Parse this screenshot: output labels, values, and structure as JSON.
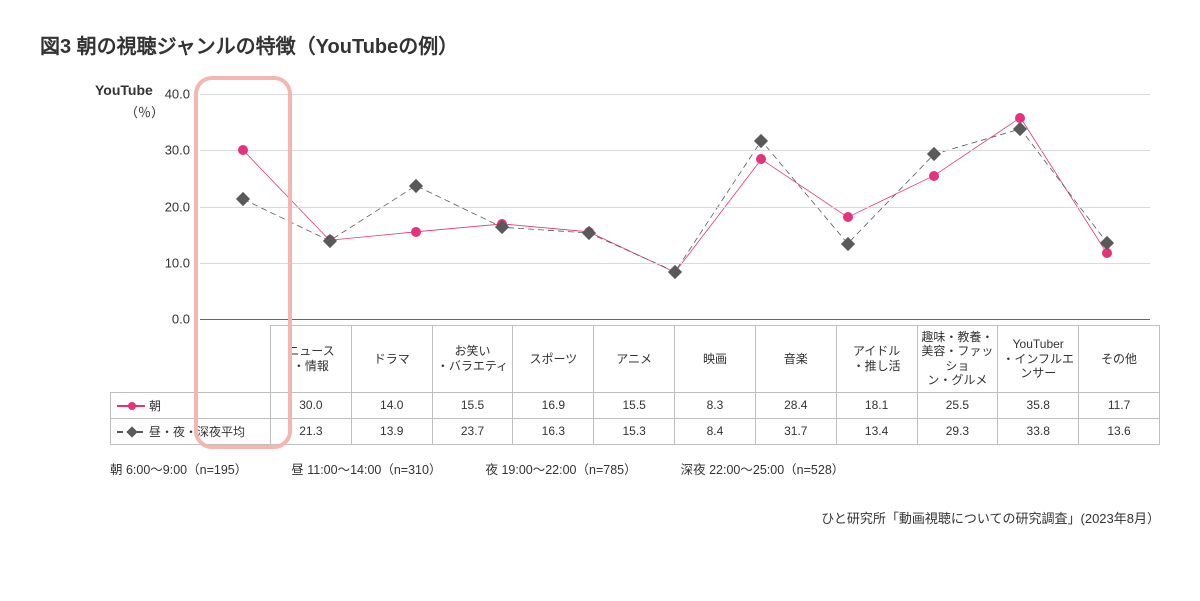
{
  "title": "図3  朝の視聴ジャンルの特徴（YouTubeの例）",
  "axis": {
    "title": "YouTube",
    "unit": "（％）",
    "ymax": 40,
    "ymin": 0,
    "yticks": [
      0.0,
      10.0,
      20.0,
      30.0,
      40.0
    ],
    "ytick_labels": [
      "0.0",
      "10.0",
      "20.0",
      "30.0",
      "40.0"
    ]
  },
  "categories": [
    "ニュース\n・情報",
    "ドラマ",
    "お笑い\n・バラエティ",
    "スポーツ",
    "アニメ",
    "映画",
    "音楽",
    "アイドル\n・推し活",
    "趣味・教養・\n美容・ファッショ\nン・グルメ",
    "YouTuber\n・インフルエンサー",
    "その他"
  ],
  "series": [
    {
      "key": "morning",
      "label": "朝",
      "color": "#e6327a",
      "dash": null,
      "marker": "circle",
      "values": [
        30.0,
        14.0,
        15.5,
        16.9,
        15.5,
        8.3,
        28.4,
        18.1,
        25.5,
        35.8,
        11.7
      ],
      "display": [
        "30.0",
        "14.0",
        "15.5",
        "16.9",
        "15.5",
        "8.3",
        "28.4",
        "18.1",
        "25.5",
        "35.8",
        "11.7"
      ]
    },
    {
      "key": "avg",
      "label": "昼・夜・深夜平均",
      "color": "#595959",
      "dash": "6,4",
      "marker": "square-rot",
      "values": [
        21.3,
        13.9,
        23.7,
        16.3,
        15.3,
        8.4,
        31.7,
        13.4,
        29.3,
        33.8,
        13.6
      ],
      "display": [
        "21.3",
        "13.9",
        "23.7",
        "16.3",
        "15.3",
        "8.4",
        "31.7",
        "13.4",
        "29.3",
        "33.8",
        "13.6"
      ]
    }
  ],
  "highlight_category_index": 0,
  "footnotes": [
    "朝  6:00～9:00（n=195）",
    "昼  11:00～14:00（n=310）",
    "夜  19:00～22:00（n=785）",
    "深夜  22:00～25:00（n=528）"
  ],
  "source": "ひと研究所「動画視聴についての研究調査」(2023年8月）",
  "style": {
    "background": "#ffffff",
    "grid_color": "#d9d9d9",
    "axis_line_color": "#666666",
    "highlight_border": "#f5b5b0",
    "line_width": 2,
    "marker_size": 5,
    "font_color": "#333333"
  }
}
